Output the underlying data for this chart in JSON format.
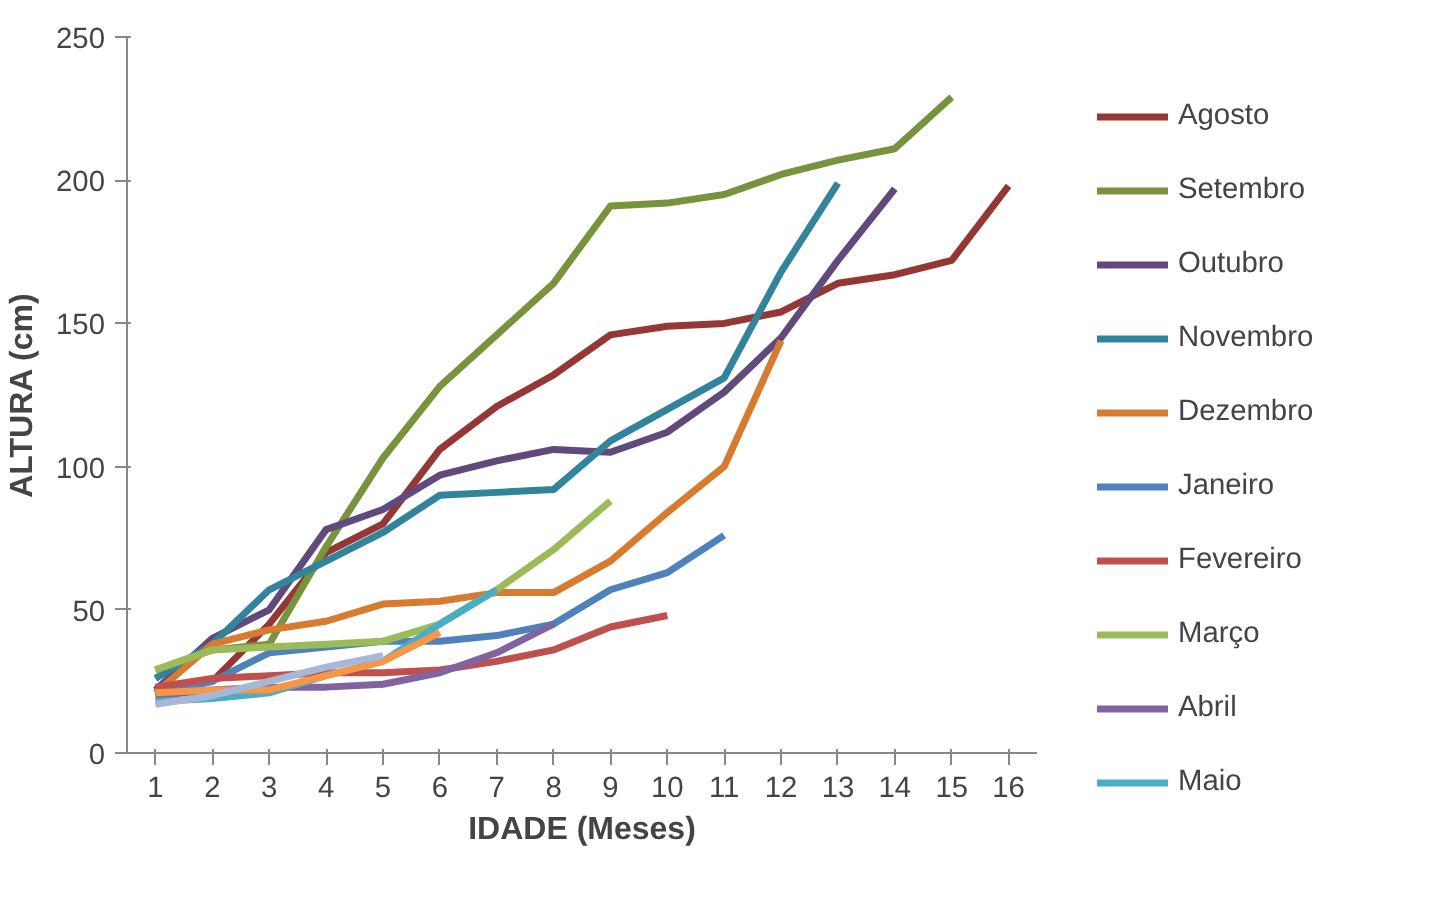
{
  "chart_data": {
    "type": "line",
    "xlabel": "IDADE (Meses)",
    "ylabel": "ALTURA (cm)",
    "xlim": [
      0.5,
      16.5
    ],
    "xticks": [
      1,
      2,
      3,
      4,
      5,
      6,
      7,
      8,
      9,
      10,
      11,
      12,
      13,
      14,
      15,
      16
    ],
    "ylim": [
      0,
      250
    ],
    "yticks": [
      0,
      50,
      100,
      150,
      200,
      250
    ],
    "grid": false,
    "legend": "right",
    "marker": "none",
    "line_style": "solid",
    "series": [
      {
        "name": "Agosto",
        "color": "#953735",
        "x": [
          1,
          2,
          3,
          4,
          5,
          6,
          7,
          8,
          9,
          10,
          11,
          12,
          13,
          14,
          15,
          16
        ],
        "values": [
          22,
          25,
          45,
          70,
          80,
          106,
          121,
          132,
          146,
          149,
          150,
          154,
          164,
          167,
          172,
          198
        ]
      },
      {
        "name": "Setembro",
        "color": "#77933c",
        "x": [
          1,
          2,
          3,
          4,
          5,
          6,
          7,
          8,
          9,
          10,
          11,
          12,
          13,
          14,
          15
        ],
        "values": [
          29,
          36,
          38,
          72,
          103,
          128,
          146,
          164,
          191,
          192,
          195,
          202,
          207,
          211,
          229
        ]
      },
      {
        "name": "Outubro",
        "color": "#604a7b",
        "x": [
          1,
          2,
          3,
          4,
          5,
          6,
          7,
          8,
          9,
          10,
          11,
          12,
          13,
          14
        ],
        "values": [
          22,
          40,
          50,
          78,
          85,
          97,
          102,
          106,
          105,
          112,
          126,
          145,
          172,
          197
        ]
      },
      {
        "name": "Novembro",
        "color": "#31849b",
        "x": [
          1,
          2,
          3,
          4,
          5,
          6,
          7,
          8,
          9,
          10,
          11,
          12,
          13
        ],
        "values": [
          26,
          38,
          57,
          67,
          77,
          90,
          91,
          92,
          109,
          120,
          131,
          168,
          199
        ]
      },
      {
        "name": "Dezembro",
        "color": "#d67b30",
        "x": [
          1,
          2,
          3,
          4,
          5,
          6,
          7,
          8,
          9,
          10,
          11,
          12
        ],
        "values": [
          21,
          38,
          43,
          46,
          52,
          53,
          56,
          56,
          67,
          84,
          100,
          144
        ]
      },
      {
        "name": "Janeiro",
        "color": "#4f81bd",
        "x": [
          1,
          2,
          3,
          4,
          5,
          6,
          7,
          8,
          9,
          10,
          11
        ],
        "values": [
          20,
          25,
          35,
          37,
          39,
          39,
          41,
          45,
          57,
          63,
          76
        ]
      },
      {
        "name": "Fevereiro",
        "color": "#c0504d",
        "x": [
          1,
          2,
          3,
          4,
          5,
          6,
          7,
          8,
          9,
          10
        ],
        "values": [
          23,
          26,
          27,
          28,
          28,
          29,
          32,
          36,
          44,
          48
        ]
      },
      {
        "name": "Março",
        "color": "#9bbb59",
        "x": [
          1,
          2,
          3,
          4,
          5,
          6,
          7,
          8,
          9
        ],
        "values": [
          29,
          36,
          37,
          38,
          39,
          45,
          57,
          71,
          88
        ]
      },
      {
        "name": "Abril",
        "color": "#8064a2",
        "x": [
          1,
          2,
          3,
          4,
          5,
          6,
          7,
          8
        ],
        "values": [
          20,
          22,
          23,
          23,
          24,
          28,
          35,
          45
        ]
      },
      {
        "name": "Maio",
        "color": "#4bacc6",
        "x": [
          1,
          2,
          3,
          4,
          5,
          6,
          7
        ],
        "values": [
          18,
          19,
          21,
          27,
          32,
          45,
          57
        ]
      },
      {
        "color": "#f79646",
        "x": [
          1,
          2,
          3,
          4,
          5,
          6
        ],
        "values": [
          21,
          22,
          22,
          27,
          32,
          42
        ]
      },
      {
        "color": "#a5b8d8",
        "x": [
          1,
          2,
          3,
          4,
          5
        ],
        "values": [
          17,
          20,
          25,
          30,
          34
        ]
      }
    ]
  }
}
